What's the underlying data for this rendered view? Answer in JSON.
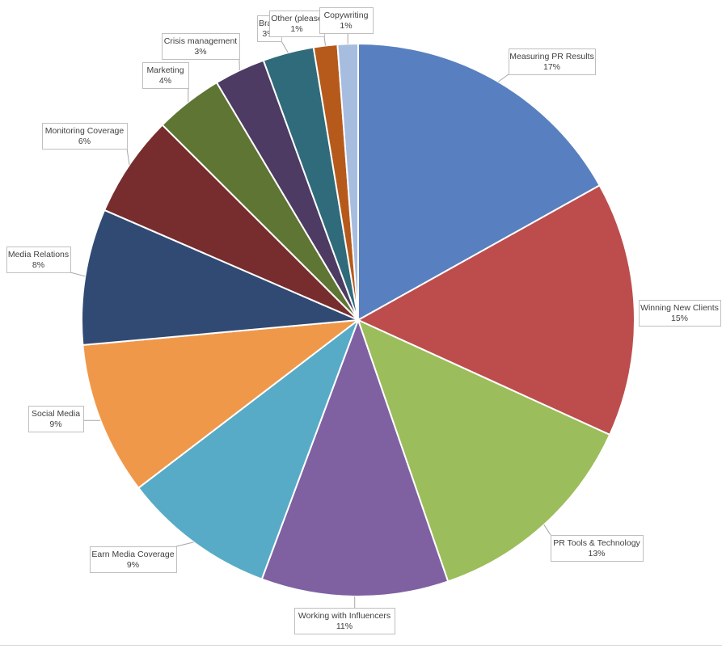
{
  "chart_data": {
    "type": "pie",
    "title": "",
    "slices": [
      {
        "label": "Measuring PR Results",
        "value_label": "17%",
        "value": 17,
        "color": "#5880c0"
      },
      {
        "label": "Winning New Clients",
        "value_label": "15%",
        "value": 15,
        "color": "#bd4d4c"
      },
      {
        "label": "PR Tools & Technology",
        "value_label": "13%",
        "value": 13,
        "color": "#9cbd5b"
      },
      {
        "label": "Working with Influencers",
        "value_label": "11%",
        "value": 11,
        "color": "#7f61a2"
      },
      {
        "label": "Earn Media Coverage",
        "value_label": "9%",
        "value": 9,
        "color": "#58abc6"
      },
      {
        "label": "Social Media",
        "value_label": "9%",
        "value": 9,
        "color": "#f0984a"
      },
      {
        "label": "Media Relations",
        "value_label": "8%",
        "value": 8,
        "color": "#304a73"
      },
      {
        "label": "Monitoring Coverage",
        "value_label": "6%",
        "value": 6,
        "color": "#772d2d"
      },
      {
        "label": "Marketing",
        "value_label": "4%",
        "value": 4,
        "color": "#5f7534"
      },
      {
        "label": "Crisis management",
        "value_label": "3%",
        "value": 3,
        "color": "#4d3b63"
      },
      {
        "label": "Bra",
        "value_label": "3%",
        "value": 3,
        "color": "#2f6b7b"
      },
      {
        "label": "Other (please",
        "value_label": "1%",
        "value": 1.4,
        "color": "#b65a1c"
      },
      {
        "label": "Copywriting",
        "value_label": "1%",
        "value": 1.2,
        "color": "#a7bddf"
      }
    ]
  }
}
